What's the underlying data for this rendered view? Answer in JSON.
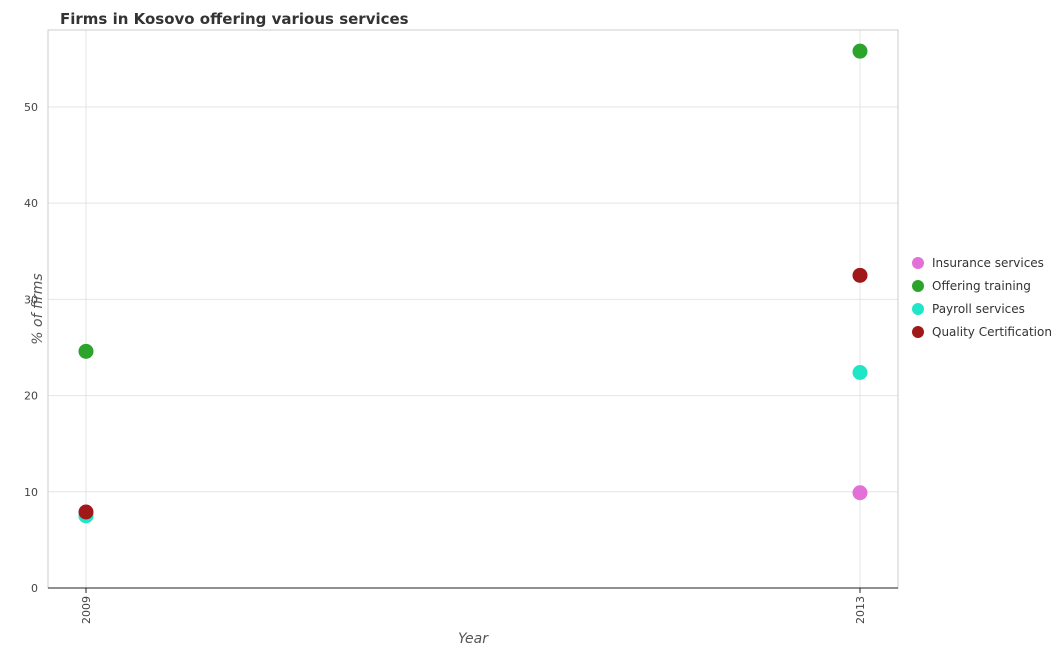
{
  "chart_data": {
    "type": "scatter",
    "title": "Firms in Kosovo offering various services",
    "xlabel": "Year",
    "ylabel": "% of firms",
    "categories": [
      "2009",
      "2013"
    ],
    "ylim": [
      0,
      58
    ],
    "yticks": [
      0,
      10,
      20,
      30,
      40,
      50
    ],
    "grid": true,
    "legend_position": "right",
    "series": [
      {
        "name": "Insurance services",
        "color": "#e36fd8",
        "values": [
          null,
          9.9
        ]
      },
      {
        "name": "Offering training",
        "color": "#2ca42c",
        "values": [
          24.6,
          55.8
        ]
      },
      {
        "name": "Payroll services",
        "color": "#1ee6c7",
        "values": [
          7.5,
          22.4
        ]
      },
      {
        "name": "Quality Certification",
        "color": "#a01818",
        "values": [
          7.9,
          32.5
        ]
      }
    ]
  }
}
